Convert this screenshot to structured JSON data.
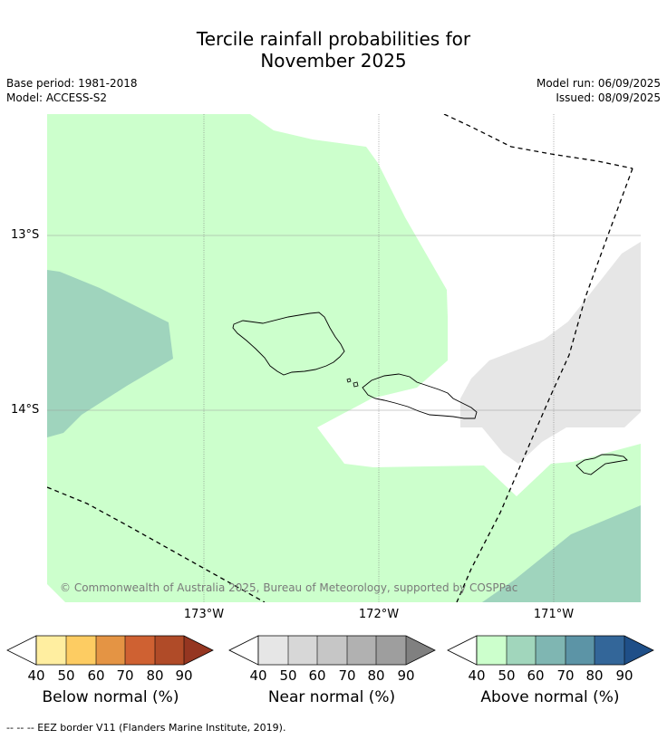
{
  "title_line1": "Tercile rainfall probabilities for",
  "title_line2": "November 2025",
  "base_period": "Base period: 1981-2018",
  "model": "Model: ACCESS-S2",
  "model_run": "Model run: 06/09/2025",
  "issued": "Issued: 08/09/2025",
  "lat_labels": [
    "13°S",
    "14°S"
  ],
  "lon_labels": [
    "173°W",
    "172°W",
    "171°W"
  ],
  "copyright": "© Commonwealth of Australia 2025, Bureau of Meteorology, supported by COSPPac",
  "colorbars": [
    {
      "label": "Below normal (%)",
      "ticks": [
        "40",
        "50",
        "60",
        "70",
        "80",
        "90"
      ],
      "colors": [
        "#ffeea0",
        "#fdcc62",
        "#e49444",
        "#cf6132",
        "#b04b28",
        "#953621"
      ]
    },
    {
      "label": "Near normal (%)",
      "ticks": [
        "40",
        "50",
        "60",
        "70",
        "80",
        "90"
      ],
      "colors": [
        "#e6e6e6",
        "#d7d7d7",
        "#c6c6c6",
        "#b1b1b1",
        "#9e9e9e",
        "#808080"
      ]
    },
    {
      "label": "Above normal (%)",
      "ticks": [
        "40",
        "50",
        "60",
        "70",
        "80",
        "90"
      ],
      "colors": [
        "#ccffcc",
        "#a1d6bc",
        "#7fb6b2",
        "#5c94a6",
        "#336699",
        "#1f4f88"
      ]
    }
  ],
  "footnote": "--  --  -- EEZ border V11 (Flanders Marine Institute, 2019).",
  "colors": {
    "above_40": "#ccffcc",
    "above_50": "#9fd4bd",
    "near_40": "#e6e6e6",
    "coastline": "#000000",
    "eez": "#000000"
  }
}
